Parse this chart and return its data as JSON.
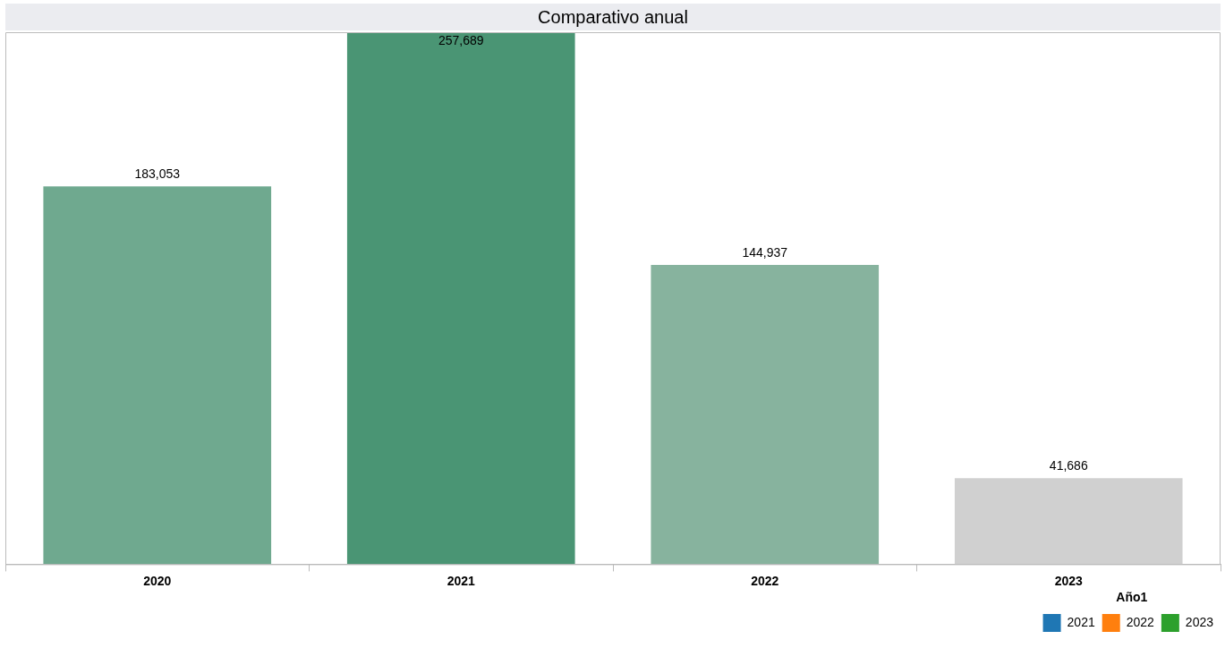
{
  "chart_data": {
    "type": "bar",
    "title": "Comparativo anual",
    "legend_title": "Año1",
    "categories": [
      "2020",
      "2021",
      "2022",
      "2023"
    ],
    "series": [
      {
        "values": [
          183053,
          257689,
          144937,
          41686
        ],
        "colors": [
          "#6fa98f",
          "#4a9574",
          "#87b39e",
          "#d0d0d0"
        ],
        "value_labels": [
          "183,053",
          "257,689",
          "144,937",
          "41,686"
        ]
      },
      {
        "name": "2021",
        "color": "#1f77b4",
        "values": [
          null,
          null,
          null,
          null
        ]
      },
      {
        "name": "2022",
        "color": "#ff7f0e",
        "values": [
          null,
          null,
          null,
          null
        ]
      },
      {
        "name": "2023",
        "color": "#2ca02c",
        "values": [
          null,
          null,
          null,
          null
        ]
      }
    ],
    "legend": "bottom right",
    "grid": false,
    "tick_labels": "x"
  }
}
